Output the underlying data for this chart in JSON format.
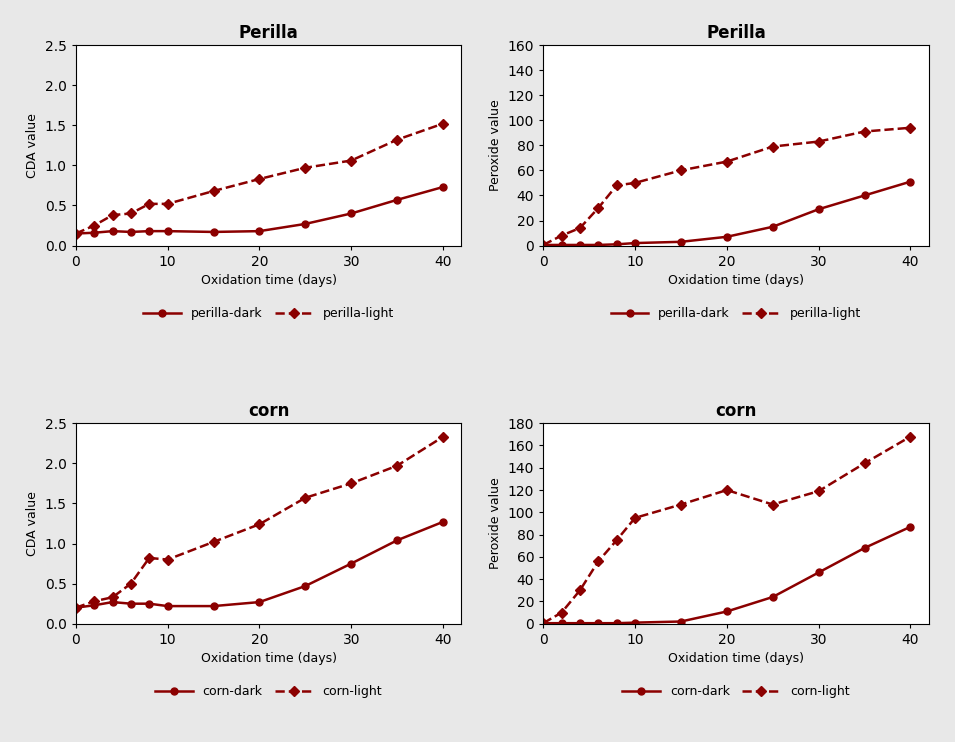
{
  "x": [
    0,
    2,
    4,
    6,
    8,
    10,
    15,
    20,
    25,
    30,
    35,
    40
  ],
  "perilla_dark_cda": [
    0.15,
    0.16,
    0.18,
    0.17,
    0.18,
    0.18,
    0.17,
    0.18,
    0.27,
    0.4,
    0.57,
    0.73
  ],
  "perilla_light_cda": [
    0.15,
    0.25,
    0.38,
    0.4,
    0.52,
    0.52,
    0.68,
    0.83,
    0.97,
    1.06,
    1.32,
    1.52
  ],
  "perilla_dark_pv": [
    0.5,
    0.5,
    0.5,
    0.5,
    1.0,
    2.0,
    3.0,
    7.0,
    15.0,
    29.0,
    40.0,
    51.0
  ],
  "perilla_light_pv": [
    0.5,
    8.0,
    14.0,
    30.0,
    48.0,
    50.0,
    60.0,
    67.0,
    79.0,
    83.0,
    91.0,
    94.0
  ],
  "corn_dark_cda": [
    0.2,
    0.23,
    0.27,
    0.25,
    0.25,
    0.22,
    0.22,
    0.27,
    0.47,
    0.75,
    1.04,
    1.27
  ],
  "corn_light_cda": [
    0.2,
    0.28,
    0.33,
    0.5,
    0.82,
    0.8,
    1.02,
    1.24,
    1.57,
    1.75,
    1.97,
    2.33
  ],
  "corn_dark_pv": [
    0.5,
    0.5,
    0.5,
    0.5,
    0.5,
    1.0,
    2.0,
    11.0,
    24.0,
    46.0,
    68.0,
    87.0
  ],
  "corn_light_pv": [
    0.5,
    10.0,
    30.0,
    56.0,
    75.0,
    95.0,
    107.0,
    120.0,
    107.0,
    119.0,
    144.0,
    168.0
  ],
  "color": "#8B0000",
  "bg_color": "#e8e8e8",
  "panel_bg": "#ffffff"
}
